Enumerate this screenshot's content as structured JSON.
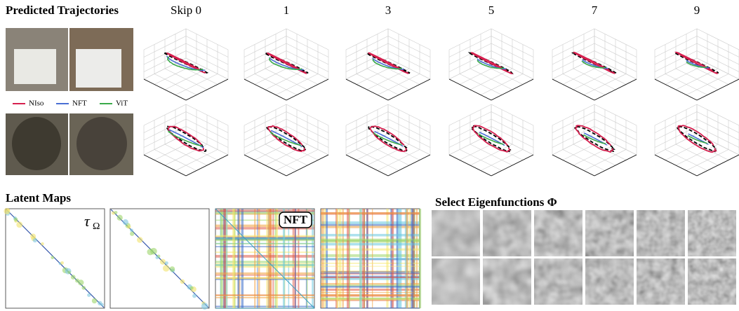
{
  "trajectories": {
    "title": "Predicted Trajectories",
    "skip_labels": [
      "Skip 0",
      "1",
      "3",
      "5",
      "7",
      "9"
    ],
    "legend": [
      {
        "name": "NIso",
        "color": "#d6204f"
      },
      {
        "name": "NFT",
        "color": "#4a6fd4"
      },
      {
        "name": "ViT",
        "color": "#3aaa4a"
      }
    ]
  },
  "latent_maps": {
    "title": "Latent Maps",
    "annotations": [
      "τ",
      "Ω",
      "NFT"
    ]
  },
  "eigenfunctions": {
    "title": "Select Eigenfunctions Φ"
  }
}
